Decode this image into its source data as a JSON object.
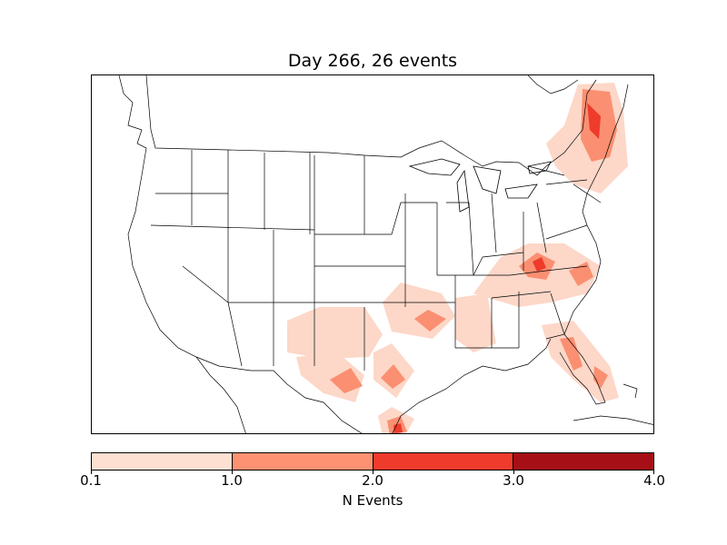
{
  "title": "Day 266, 26 events",
  "colorbar": {
    "label": "N Events",
    "ticks": [
      "0.1",
      "1.0",
      "2.0",
      "3.0",
      "4.0"
    ],
    "colors": [
      "#fee0d2",
      "#fc9272",
      "#ef3b2c",
      "#a50f15"
    ]
  },
  "map": {
    "region": "Continental United States, state boundaries",
    "fill_colors": {
      "low": "#fdd7c8",
      "mid": "#fb8f71",
      "high": "#ee3b2c"
    }
  }
}
